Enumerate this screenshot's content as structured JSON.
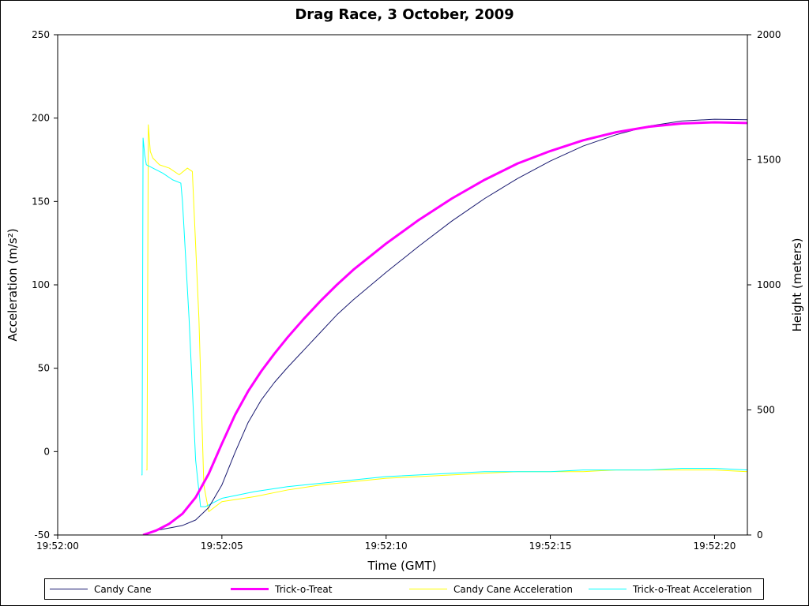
{
  "chart_data": {
    "type": "line",
    "title": "Drag Race, 3 October, 2009",
    "xlabel": "Time (GMT)",
    "ylabel_left": "Acceleration (m/s²)",
    "ylabel_right": "Height (meters)",
    "xlim": [
      "19:52:00",
      "19:52:21"
    ],
    "ylim_left": [
      -50,
      250
    ],
    "ylim_right": [
      0,
      2000
    ],
    "x_ticks": [
      "19:52:00",
      "19:52:05",
      "19:52:10",
      "19:52:15",
      "19:52:20"
    ],
    "y_ticks_left": [
      "-50",
      "0",
      "50",
      "100",
      "150",
      "200",
      "250"
    ],
    "y_ticks_right": [
      "0",
      "500",
      "1000",
      "1500",
      "2000"
    ],
    "grid": false,
    "legend_position": "bottom",
    "series": [
      {
        "name": "Candy Cane",
        "axis": "right",
        "color": "#191970",
        "x": [
          "19:52:02.6",
          "19:52:03.0",
          "19:52:03.4",
          "19:52:03.8",
          "19:52:04.2",
          "19:52:04.6",
          "19:52:05.0",
          "19:52:05.4",
          "19:52:05.8",
          "19:52:06.2",
          "19:52:06.6",
          "19:52:07.0",
          "19:52:07.5",
          "19:52:08.0",
          "19:52:08.5",
          "19:52:09.0",
          "19:52:10.0",
          "19:52:11.0",
          "19:52:12.0",
          "19:52:13.0",
          "19:52:14.0",
          "19:52:15.0",
          "19:52:16.0",
          "19:52:17.0",
          "19:52:18.0",
          "19:52:19.0",
          "19:52:20.0",
          "19:52:21.0"
        ],
        "y": [
          0,
          18,
          28,
          38,
          60,
          110,
          200,
          330,
          450,
          540,
          610,
          670,
          740,
          810,
          880,
          940,
          1050,
          1155,
          1255,
          1345,
          1425,
          1495,
          1555,
          1600,
          1635,
          1655,
          1662,
          1660
        ]
      },
      {
        "name": "Trick-o-Treat",
        "axis": "right",
        "color": "#ff00ff",
        "x": [
          "19:52:02.6",
          "19:52:03.0",
          "19:52:03.4",
          "19:52:03.8",
          "19:52:04.2",
          "19:52:04.6",
          "19:52:05.0",
          "19:52:05.4",
          "19:52:05.8",
          "19:52:06.2",
          "19:52:06.6",
          "19:52:07.0",
          "19:52:07.5",
          "19:52:08.0",
          "19:52:08.5",
          "19:52:09.0",
          "19:52:10.0",
          "19:52:11.0",
          "19:52:12.0",
          "19:52:13.0",
          "19:52:14.0",
          "19:52:15.0",
          "19:52:16.0",
          "19:52:17.0",
          "19:52:18.0",
          "19:52:19.0",
          "19:52:20.0",
          "19:52:21.0"
        ],
        "y": [
          0,
          18,
          45,
          85,
          150,
          245,
          365,
          480,
          575,
          655,
          725,
          790,
          865,
          935,
          1000,
          1060,
          1165,
          1260,
          1345,
          1420,
          1485,
          1535,
          1578,
          1610,
          1632,
          1645,
          1650,
          1647
        ]
      },
      {
        "name": "Candy Cane Acceleration",
        "axis": "left",
        "color": "#ffff00",
        "x": [
          "19:52:02.7",
          "19:52:02.72",
          "19:52:02.76",
          "19:52:02.82",
          "19:52:02.9",
          "19:52:03.1",
          "19:52:03.4",
          "19:52:03.7",
          "19:52:03.95",
          "19:52:04.1",
          "19:52:04.3",
          "19:52:04.45",
          "19:52:04.6",
          "19:52:05.0",
          "19:52:06.0",
          "19:52:07.0",
          "19:52:08.0",
          "19:52:09.0",
          "19:52:10.0",
          "19:52:11.0",
          "19:52:12.0",
          "19:52:13.0",
          "19:52:14.0",
          "19:52:15.0",
          "19:52:16.0",
          "19:52:17.0",
          "19:52:18.0",
          "19:52:19.0",
          "19:52:20.0",
          "19:52:21.0"
        ],
        "y": [
          -11,
          -11,
          196,
          180,
          176,
          172,
          170,
          166,
          170,
          168,
          80,
          -20,
          -36,
          -30,
          -27,
          -23,
          -20,
          -18,
          -16,
          -15,
          -14,
          -13,
          -12,
          -12,
          -12,
          -11,
          -11,
          -11,
          -11,
          -12
        ]
      },
      {
        "name": "Trick-o-Treat Acceleration",
        "axis": "left",
        "color": "#00ffff",
        "x": [
          "19:52:02.55",
          "19:52:02.57",
          "19:52:02.6",
          "19:52:02.65",
          "19:52:02.7",
          "19:52:02.9",
          "19:52:03.2",
          "19:52:03.5",
          "19:52:03.75",
          "19:52:03.8",
          "19:52:04.0",
          "19:52:04.2",
          "19:52:04.35",
          "19:52:04.5",
          "19:52:05.0",
          "19:52:06.0",
          "19:52:07.0",
          "19:52:08.0",
          "19:52:09.0",
          "19:52:10.0",
          "19:52:11.0",
          "19:52:12.0",
          "19:52:13.0",
          "19:52:14.0",
          "19:52:15.0",
          "19:52:16.0",
          "19:52:17.0",
          "19:52:18.0",
          "19:52:19.0",
          "19:52:20.0",
          "19:52:21.0"
        ],
        "y": [
          -14,
          -14,
          188,
          178,
          172,
          170,
          167,
          163,
          161,
          150,
          80,
          -5,
          -33,
          -33,
          -28,
          -24,
          -21,
          -19,
          -17,
          -15,
          -14,
          -13,
          -12,
          -12,
          -12,
          -11,
          -11,
          -11,
          -10,
          -10,
          -11
        ]
      }
    ]
  }
}
